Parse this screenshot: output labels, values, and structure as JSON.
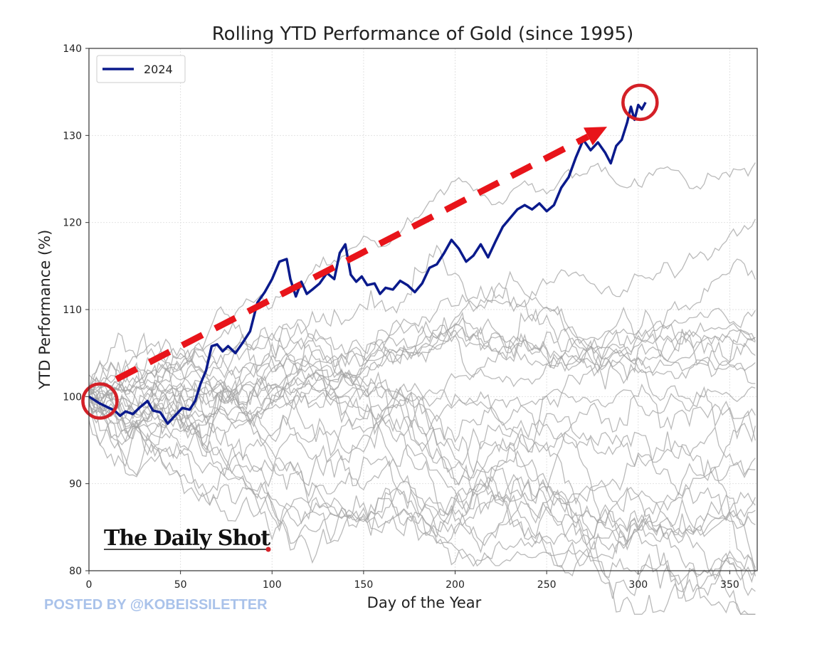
{
  "chart_data": {
    "type": "line",
    "title": "Rolling YTD Performance of Gold (since 1995)",
    "xlabel": "Day of the Year",
    "ylabel": "YTD Performance (%)",
    "xlim": [
      0,
      365
    ],
    "ylim": [
      80,
      140
    ],
    "xticks": [
      0,
      50,
      100,
      150,
      200,
      250,
      300,
      350
    ],
    "yticks": [
      80,
      90,
      100,
      110,
      120,
      130,
      140
    ],
    "grid": true,
    "legend_position": "top-left",
    "highlight": {
      "name": "2024",
      "color": "#0a1a8c",
      "points": [
        [
          0,
          100
        ],
        [
          3,
          99.6
        ],
        [
          6,
          99.2
        ],
        [
          10,
          98.8
        ],
        [
          14,
          98.4
        ],
        [
          17,
          97.8
        ],
        [
          20,
          98.3
        ],
        [
          24,
          98.0
        ],
        [
          28,
          98.8
        ],
        [
          32,
          99.5
        ],
        [
          35,
          98.4
        ],
        [
          39,
          98.2
        ],
        [
          43,
          96.9
        ],
        [
          47,
          97.8
        ],
        [
          51,
          98.7
        ],
        [
          55,
          98.5
        ],
        [
          58,
          99.5
        ],
        [
          61,
          101.5
        ],
        [
          64,
          103.0
        ],
        [
          67,
          105.8
        ],
        [
          70,
          106.0
        ],
        [
          73,
          105.2
        ],
        [
          76,
          105.8
        ],
        [
          80,
          105.0
        ],
        [
          84,
          106.2
        ],
        [
          88,
          107.5
        ],
        [
          92,
          110.8
        ],
        [
          96,
          112.0
        ],
        [
          100,
          113.5
        ],
        [
          104,
          115.5
        ],
        [
          108,
          115.8
        ],
        [
          110,
          113.5
        ],
        [
          113,
          111.5
        ],
        [
          116,
          113.2
        ],
        [
          119,
          111.8
        ],
        [
          122,
          112.3
        ],
        [
          126,
          113.0
        ],
        [
          130,
          114.2
        ],
        [
          134,
          113.5
        ],
        [
          137,
          116.5
        ],
        [
          140,
          117.5
        ],
        [
          143,
          114.0
        ],
        [
          146,
          113.2
        ],
        [
          149,
          113.8
        ],
        [
          152,
          112.8
        ],
        [
          156,
          113.0
        ],
        [
          159,
          111.8
        ],
        [
          162,
          112.5
        ],
        [
          166,
          112.3
        ],
        [
          170,
          113.3
        ],
        [
          174,
          112.8
        ],
        [
          178,
          112.0
        ],
        [
          182,
          113.0
        ],
        [
          186,
          114.8
        ],
        [
          190,
          115.2
        ],
        [
          194,
          116.5
        ],
        [
          198,
          118.0
        ],
        [
          202,
          117.0
        ],
        [
          206,
          115.5
        ],
        [
          210,
          116.2
        ],
        [
          214,
          117.5
        ],
        [
          218,
          116.0
        ],
        [
          222,
          117.8
        ],
        [
          226,
          119.5
        ],
        [
          230,
          120.5
        ],
        [
          234,
          121.5
        ],
        [
          238,
          122.0
        ],
        [
          242,
          121.5
        ],
        [
          246,
          122.2
        ],
        [
          250,
          121.3
        ],
        [
          254,
          122.0
        ],
        [
          258,
          124.0
        ],
        [
          262,
          125.2
        ],
        [
          266,
          127.5
        ],
        [
          270,
          129.5
        ],
        [
          274,
          128.3
        ],
        [
          278,
          129.2
        ],
        [
          282,
          128.0
        ],
        [
          285,
          126.8
        ],
        [
          288,
          128.8
        ],
        [
          291,
          129.5
        ],
        [
          294,
          131.5
        ],
        [
          296,
          133.3
        ],
        [
          298,
          131.8
        ],
        [
          300,
          133.5
        ],
        [
          302,
          133.0
        ],
        [
          304,
          133.8
        ]
      ]
    },
    "annotations": {
      "trend_arrow": {
        "from": [
          15,
          102
        ],
        "to": [
          283,
          131
        ],
        "color": "#e8141a"
      },
      "circles": [
        {
          "center": [
            6,
            99.5
          ],
          "color": "#d42027"
        },
        {
          "center": [
            301,
            133.8
          ],
          "color": "#d42027"
        }
      ]
    },
    "background_series_count": 29,
    "background_color": "#a3a3a3"
  },
  "chart_text": {
    "title": "Rolling YTD Performance of Gold (since 1995)",
    "xlabel": "Day of the Year",
    "ylabel": "YTD Performance (%)",
    "legend_label": "2024"
  },
  "watermark": {
    "logo": "The Daily Shot",
    "credit": "POSTED BY @KOBEISSILETTER"
  }
}
